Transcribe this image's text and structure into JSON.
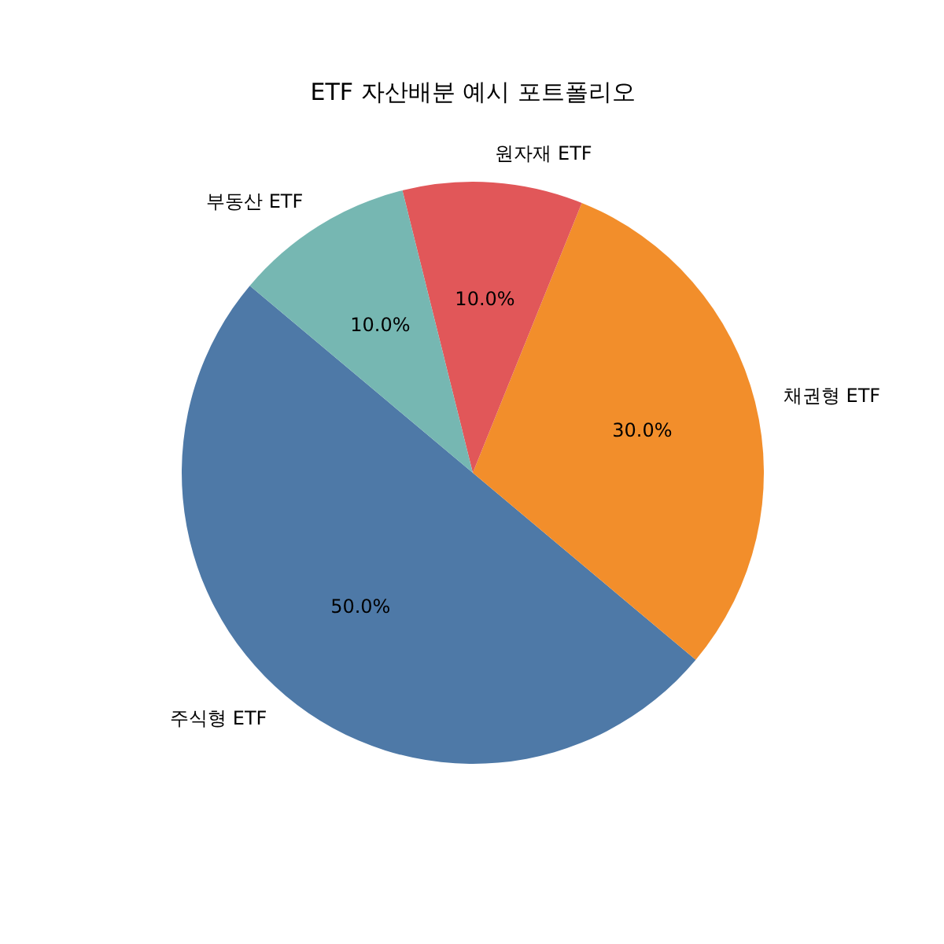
{
  "chart_data": {
    "type": "pie",
    "title": "ETF 자산배분 예시 포트폴리오",
    "categories": [
      "주식형 ETF",
      "채권형 ETF",
      "원자재 ETF",
      "부동산 ETF"
    ],
    "values": [
      50,
      30,
      10,
      10
    ],
    "colors": [
      "#4e79a7",
      "#f28e2b",
      "#e15759",
      "#76b7b2"
    ],
    "value_labels": [
      "50.0%",
      "30.0%",
      "10.0%",
      "10.0%"
    ]
  }
}
